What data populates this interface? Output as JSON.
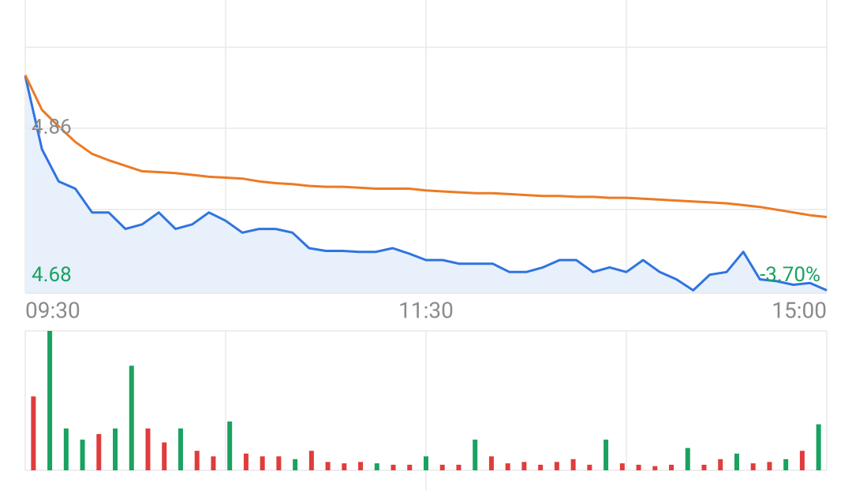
{
  "chart_data": [
    {
      "type": "line",
      "x": [
        "09:30",
        "09:35",
        "09:40",
        "09:45",
        "09:50",
        "09:55",
        "10:00",
        "10:05",
        "10:10",
        "10:15",
        "10:20",
        "10:25",
        "10:30",
        "10:35",
        "10:40",
        "10:45",
        "10:50",
        "10:55",
        "11:00",
        "11:05",
        "11:10",
        "11:15",
        "11:20",
        "11:25",
        "11:30",
        "13:05",
        "13:10",
        "13:15",
        "13:20",
        "13:25",
        "13:30",
        "13:35",
        "13:40",
        "13:45",
        "13:50",
        "13:55",
        "14:00",
        "14:05",
        "14:10",
        "14:15",
        "14:20",
        "14:25",
        "14:30",
        "14:35",
        "14:40",
        "14:45",
        "14:50",
        "14:55",
        "15:00"
      ],
      "series": [
        {
          "color": "#2f74e0",
          "fill": "#e8f0fc",
          "values": [
            4.917,
            4.837,
            4.802,
            4.794,
            4.768,
            4.768,
            4.75,
            4.755,
            4.768,
            4.75,
            4.755,
            4.768,
            4.759,
            4.746,
            4.75,
            4.75,
            4.746,
            4.729,
            4.726,
            4.726,
            4.725,
            4.725,
            4.729,
            4.723,
            4.716,
            4.716,
            4.712,
            4.712,
            4.712,
            4.703,
            4.703,
            4.708,
            4.716,
            4.716,
            4.703,
            4.708,
            4.703,
            4.716,
            4.703,
            4.695,
            4.683,
            4.7,
            4.703,
            4.725,
            4.695,
            4.693,
            4.689,
            4.691,
            4.683
          ]
        },
        {
          "color": "#ec7a24",
          "values": [
            4.918,
            4.88,
            4.862,
            4.845,
            4.832,
            4.825,
            4.819,
            4.813,
            4.812,
            4.811,
            4.809,
            4.807,
            4.806,
            4.805,
            4.802,
            4.8,
            4.799,
            4.797,
            4.796,
            4.796,
            4.795,
            4.794,
            4.794,
            4.794,
            4.792,
            4.791,
            4.79,
            4.789,
            4.789,
            4.788,
            4.787,
            4.786,
            4.786,
            4.785,
            4.785,
            4.784,
            4.784,
            4.783,
            4.782,
            4.781,
            4.78,
            4.779,
            4.778,
            4.776,
            4.774,
            4.771,
            4.768,
            4.765,
            4.763
          ]
        }
      ],
      "ylim": [
        4.68,
        5.0
      ],
      "yticks": [
        4.68,
        4.86
      ],
      "xtick_indices": [
        0,
        24,
        48
      ],
      "annotation": "-3.70%"
    },
    {
      "type": "bar",
      "ylim": [
        0,
        100
      ],
      "values": [
        53,
        100,
        30,
        22,
        26,
        30,
        75,
        30,
        20,
        30,
        14,
        10,
        35,
        12,
        10,
        10,
        8,
        14,
        6,
        5,
        6,
        5,
        4,
        4,
        10,
        4,
        4,
        22,
        10,
        5,
        6,
        4,
        6,
        8,
        4,
        22,
        5,
        4,
        3,
        4,
        16,
        4,
        8,
        12,
        5,
        6,
        8,
        14,
        33
      ],
      "colors": [
        "#e03c3c",
        "#1aa260",
        "#1aa260",
        "#1aa260",
        "#e03c3c",
        "#1aa260",
        "#1aa260",
        "#e03c3c",
        "#e03c3c",
        "#1aa260",
        "#e03c3c",
        "#e03c3c",
        "#1aa260",
        "#e03c3c",
        "#e03c3c",
        "#e03c3c",
        "#1aa260",
        "#e03c3c",
        "#e03c3c",
        "#e03c3c",
        "#e03c3c",
        "#1aa260",
        "#e03c3c",
        "#e03c3c",
        "#1aa260",
        "#e03c3c",
        "#e03c3c",
        "#1aa260",
        "#e03c3c",
        "#e03c3c",
        "#e03c3c",
        "#e03c3c",
        "#e03c3c",
        "#e03c3c",
        "#e03c3c",
        "#1aa260",
        "#e03c3c",
        "#e03c3c",
        "#e03c3c",
        "#e03c3c",
        "#1aa260",
        "#e03c3c",
        "#e03c3c",
        "#1aa260",
        "#e03c3c",
        "#e03c3c",
        "#1aa260",
        "#e03c3c",
        "#1aa260"
      ]
    }
  ]
}
